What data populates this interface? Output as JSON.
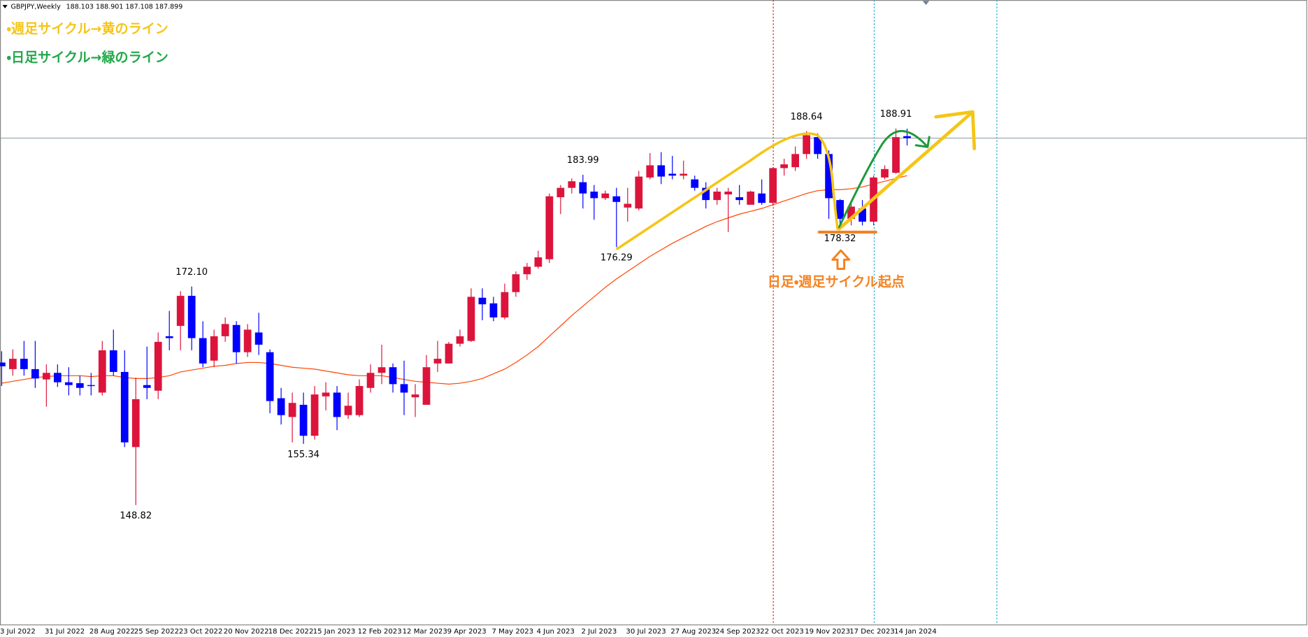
{
  "chart_data": {
    "type": "candlestick",
    "title": "GBPJPY,Weekly",
    "categories": [
      "3 Jul 2022",
      null,
      null,
      null,
      "31 Jul 2022",
      null,
      null,
      null,
      "28 Aug 2022",
      null,
      null,
      null,
      "25 Sep 2022",
      null,
      null,
      null,
      "23 Oct 2022",
      null,
      null,
      null,
      "20 Nov 2022",
      null,
      null,
      null,
      "18 Dec 2022",
      null,
      null,
      null,
      "15 Jan 2023",
      null,
      null,
      null,
      "12 Feb 2023",
      null,
      null,
      null,
      "12 Mar 2023",
      null,
      null,
      null,
      "9 Apr 2023",
      null,
      null,
      null,
      "7 May 2023",
      null,
      null,
      null,
      "4 Jun 2023",
      null,
      null,
      null,
      "2 Jul 2023",
      null,
      null,
      null,
      "30 Jul 2023",
      null,
      null,
      null,
      "27 Aug 2023",
      null,
      null,
      null,
      "24 Sep 2023",
      null,
      null,
      null,
      "22 Oct 2023",
      null,
      null,
      null,
      "19 Nov 2023",
      null,
      null,
      null,
      "17 Dec 2023",
      null,
      null,
      null,
      "14 Jan 2024",
      null
    ],
    "open": [
      164.0,
      163.3,
      164.4,
      163.3,
      162.2,
      162.9,
      161.9,
      161.8,
      161.6,
      160.8,
      165.3,
      163.0,
      155.0,
      161.6,
      161.0,
      166.8,
      167.9,
      171.1,
      166.6,
      164.2,
      166.8,
      168.0,
      165.1,
      167.2,
      165.1,
      160.2,
      158.2,
      159.5,
      156.2,
      160.4,
      160.8,
      158.4,
      158.4,
      161.3,
      162.9,
      163.5,
      161.7,
      160.3,
      159.5,
      163.9,
      163.9,
      166.0,
      166.3,
      170.9,
      170.3,
      168.8,
      171.5,
      173.4,
      174.2,
      175.0,
      181.6,
      182.6,
      183.2,
      182.2,
      181.5,
      181.7,
      180.5,
      180.4,
      183.7,
      185.0,
      184.1,
      183.9,
      183.5,
      182.6,
      181.3,
      181.9,
      181.6,
      180.8,
      182.0,
      181.0,
      184.7,
      184.8,
      186.2,
      188.0,
      186.2,
      181.3,
      179.3,
      180.4,
      179.0,
      183.7,
      184.2,
      188.103
    ],
    "high": [
      165.2,
      165.4,
      166.3,
      166.3,
      163.8,
      163.8,
      163.5,
      162.6,
      162.9,
      166.3,
      167.5,
      165.3,
      162.4,
      165.7,
      167.2,
      169.5,
      171.6,
      172.1,
      168.4,
      167.5,
      168.8,
      168.4,
      168.1,
      169.3,
      165.4,
      161.3,
      160.8,
      160.8,
      161.5,
      161.9,
      161.5,
      160.8,
      162.2,
      163.8,
      165.9,
      163.9,
      164.2,
      161.7,
      164.8,
      166.3,
      166.2,
      167.5,
      171.9,
      171.9,
      171.0,
      172.4,
      173.7,
      174.6,
      175.9,
      182.0,
      182.9,
      183.6,
      183.99,
      182.9,
      182.3,
      182.6,
      182.6,
      184.4,
      186.3,
      186.4,
      186.0,
      185.5,
      183.9,
      183.2,
      182.6,
      182.6,
      182.9,
      182.3,
      183.5,
      184.8,
      185.7,
      187.0,
      188.64,
      188.4,
      186.6,
      181.4,
      181.0,
      181.3,
      183.9,
      185.0,
      188.91,
      188.901
    ],
    "low": [
      161.5,
      162.6,
      162.6,
      161.3,
      159.3,
      161.4,
      160.5,
      160.5,
      160.5,
      160.5,
      162.6,
      155.0,
      148.82,
      160.1,
      160.1,
      165.3,
      165.3,
      165.3,
      163.5,
      163.5,
      166.2,
      163.9,
      164.6,
      164.8,
      158.6,
      157.4,
      155.5,
      155.34,
      155.8,
      158.9,
      156.8,
      158.0,
      158.2,
      160.8,
      161.7,
      160.8,
      158.4,
      158.2,
      159.5,
      163.0,
      163.9,
      165.7,
      166.2,
      168.5,
      168.4,
      168.6,
      171.0,
      172.8,
      174.0,
      174.6,
      179.8,
      182.0,
      180.4,
      179.2,
      181.3,
      176.29,
      179.0,
      180.2,
      183.5,
      183.0,
      183.5,
      183.5,
      182.3,
      180.4,
      180.8,
      177.9,
      180.8,
      180.8,
      180.8,
      180.7,
      183.9,
      184.4,
      185.7,
      185.7,
      179.3,
      178.32,
      178.6,
      178.6,
      178.6,
      183.5,
      184.1,
      187.108
    ],
    "close": [
      163.6,
      164.4,
      163.3,
      162.3,
      162.9,
      161.9,
      161.6,
      161.3,
      161.5,
      165.3,
      163.0,
      155.5,
      160.1,
      161.3,
      166.2,
      166.6,
      171.1,
      166.6,
      163.9,
      166.8,
      168.1,
      165.1,
      167.5,
      165.9,
      159.9,
      158.4,
      159.7,
      156.2,
      160.6,
      160.8,
      158.2,
      159.4,
      161.5,
      162.9,
      163.5,
      161.7,
      160.8,
      160.6,
      163.5,
      164.4,
      166.0,
      166.8,
      171.0,
      170.2,
      168.8,
      171.5,
      173.4,
      174.2,
      175.2,
      181.7,
      182.6,
      183.3,
      182.0,
      181.5,
      182.0,
      181.1,
      180.9,
      183.8,
      185.0,
      183.8,
      183.9,
      184.1,
      182.6,
      181.3,
      182.2,
      182.2,
      181.3,
      182.2,
      181.0,
      184.7,
      185.1,
      186.2,
      188.2,
      186.2,
      181.5,
      179.3,
      180.6,
      179.0,
      183.7,
      184.6,
      188.0,
      187.899
    ],
    "up_color": "#dc143c",
    "down_color": "#0000ff",
    "ma": {
      "color": "#ff4500",
      "values": [
        161.8,
        162.0,
        162.2,
        162.4,
        162.5,
        162.6,
        162.6,
        162.6,
        162.5,
        162.6,
        162.6,
        162.4,
        162.3,
        162.3,
        162.4,
        162.6,
        163.0,
        163.2,
        163.4,
        163.6,
        163.7,
        163.9,
        164.0,
        164.0,
        163.9,
        163.7,
        163.5,
        163.4,
        163.3,
        163.1,
        162.9,
        162.7,
        162.6,
        162.6,
        162.6,
        162.4,
        162.2,
        162.0,
        161.9,
        161.8,
        161.7,
        161.8,
        162.0,
        162.3,
        162.8,
        163.3,
        164.0,
        164.8,
        165.7,
        166.8,
        167.9,
        169.0,
        170.0,
        171.0,
        172.0,
        172.9,
        173.7,
        174.5,
        175.3,
        176.0,
        176.7,
        177.3,
        177.9,
        178.5,
        179.0,
        179.4,
        179.8,
        180.1,
        180.4,
        180.8,
        181.2,
        181.6,
        182.0,
        182.3,
        182.4,
        182.4,
        182.5,
        182.7,
        183.0,
        183.3,
        183.6,
        183.9
      ]
    },
    "ylim": [
      136.11,
      202.6
    ],
    "price_labels": [
      "172.10",
      "148.82",
      "155.34",
      "183.99",
      "176.29",
      "188.64",
      "178.32",
      "188.91"
    ],
    "notes": [
      "・週足サイクル→黄のライン",
      "・日足サイクル→緑のライン"
    ],
    "origin_note": "日足・週足サイクル起点"
  }
}
